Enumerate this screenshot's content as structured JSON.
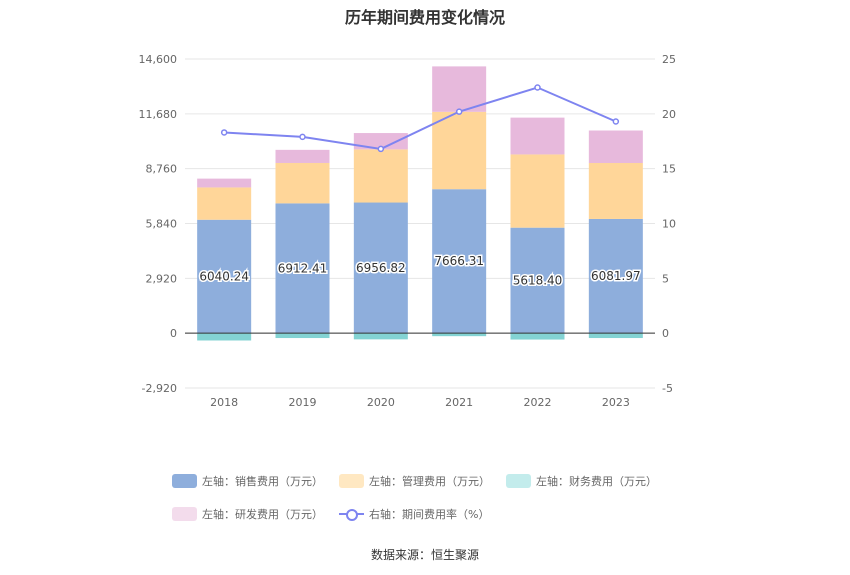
{
  "chart_data": {
    "type": "bar",
    "title": "历年期间费用变化情况",
    "categories": [
      "2018",
      "2019",
      "2020",
      "2021",
      "2022",
      "2023"
    ],
    "left_axis": {
      "ticks": [
        "14,600",
        "11,680",
        "8,760",
        "5,840",
        "2,920",
        "0",
        "-2,920"
      ],
      "range": [
        -2920,
        14600
      ]
    },
    "right_axis": {
      "ticks": [
        "25",
        "20",
        "15",
        "10",
        "5",
        "0",
        "-5"
      ],
      "range": [
        -5,
        25
      ]
    },
    "series": [
      {
        "name": "左轴：销售费用（万元）",
        "type": "bar",
        "stack": true,
        "color": "#8eaedc",
        "values": [
          6040.24,
          6912.41,
          6956.82,
          7666.31,
          5618.4,
          6081.97
        ],
        "labels": [
          "6040.24",
          "6912.41",
          "6956.82",
          "7666.31",
          "5618.40",
          "6081.97"
        ]
      },
      {
        "name": "左轴：管理费用（万元）",
        "type": "bar",
        "stack": true,
        "color": "#ffd699",
        "values": [
          1720,
          2150,
          2830,
          4120,
          3900,
          2980
        ]
      },
      {
        "name": "左轴：财务费用（万元）",
        "type": "bar",
        "stack": true,
        "color": "#83d3d3",
        "values": [
          -390,
          -260,
          -330,
          -160,
          -340,
          -260
        ]
      },
      {
        "name": "左轴：研发费用（万元）",
        "type": "bar",
        "stack": true,
        "color": "#e7b9dc",
        "values": [
          470,
          700,
          870,
          2420,
          1960,
          1730
        ]
      },
      {
        "name": "右轴：期间费用率（%）",
        "type": "line",
        "axis": "right",
        "color": "#7e84f0",
        "values": [
          18.3,
          17.9,
          16.8,
          20.2,
          22.4,
          19.3
        ]
      }
    ],
    "legend_position": "bottom",
    "grid": true
  },
  "legend": {
    "row1": [
      {
        "label": "左轴：销售费用（万元）",
        "color": "#8eaedc"
      },
      {
        "label": "左轴：管理费用（万元）",
        "color": "#ffe8c2"
      },
      {
        "label": "左轴：财务费用（万元）",
        "color": "#c3ecec"
      }
    ],
    "row2": [
      {
        "label": "左轴：研发费用（万元）",
        "color": "#f3dcec"
      },
      {
        "label": "右轴：期间费用率（%）",
        "color": "#7e84f0"
      }
    ]
  },
  "source": "数据来源：恒生聚源"
}
